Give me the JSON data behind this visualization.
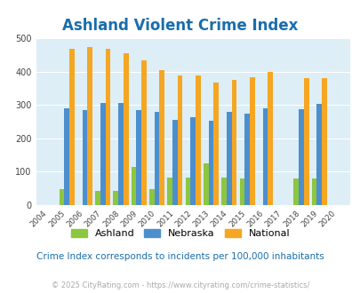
{
  "title": "Ashland Violent Crime Index",
  "title_color": "#1a6eab",
  "plot_bg_color": "#ddeef6",
  "fig_bg_color": "#ffffff",
  "years": [
    2004,
    2005,
    2006,
    2007,
    2008,
    2009,
    2010,
    2011,
    2012,
    2013,
    2014,
    2015,
    2016,
    2017,
    2018,
    2019,
    2020
  ],
  "ashland": [
    0,
    47,
    0,
    42,
    42,
    115,
    47,
    83,
    83,
    125,
    83,
    80,
    0,
    0,
    80,
    80,
    0
  ],
  "nebraska": [
    0,
    289,
    285,
    305,
    305,
    285,
    280,
    256,
    262,
    253,
    280,
    274,
    291,
    0,
    288,
    303,
    0
  ],
  "national": [
    0,
    469,
    473,
    467,
    455,
    432,
    405,
    387,
    387,
    368,
    376,
    383,
    398,
    0,
    379,
    379,
    0
  ],
  "ashland_color": "#8dc63f",
  "nebraska_color": "#4d8fcc",
  "national_color": "#f5a623",
  "ylim": [
    0,
    500
  ],
  "yticks": [
    0,
    100,
    200,
    300,
    400,
    500
  ],
  "subtitle": "Crime Index corresponds to incidents per 100,000 inhabitants",
  "subtitle_color": "#1a6eab",
  "footer": "© 2025 CityRating.com - https://www.cityrating.com/crime-statistics/",
  "footer_color": "#aaaaaa",
  "grid_color": "#ffffff",
  "bar_width": 0.28
}
